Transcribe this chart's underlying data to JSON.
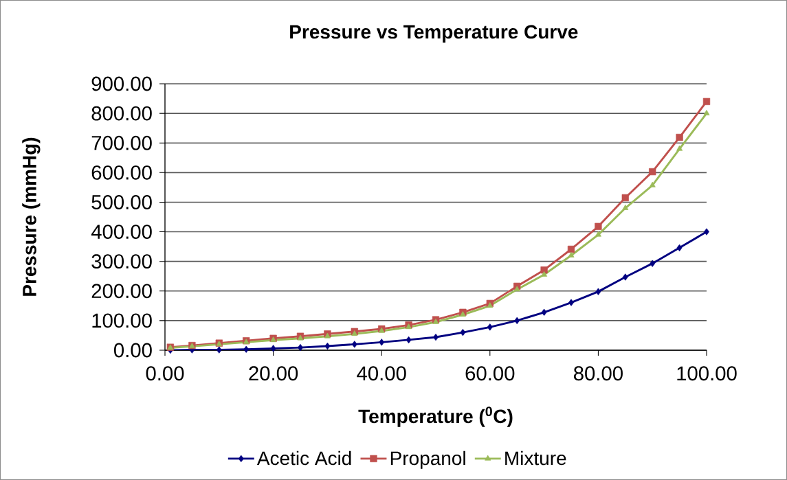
{
  "chart_data": {
    "type": "line",
    "title": "Pressure vs Temperature Curve",
    "xlabel": "Temperature ($^{0}$C)",
    "ylabel": "Pressure (mmHg)",
    "x": [
      1,
      5,
      10,
      15,
      20,
      25,
      30,
      35,
      40,
      45,
      50,
      55,
      60,
      65,
      70,
      75,
      80,
      85,
      90,
      95,
      100
    ],
    "series": [
      {
        "name": "Acetic Acid",
        "color": "#000080",
        "marker": "diamond",
        "values": [
          0,
          1,
          1,
          3,
          6,
          9,
          14,
          20,
          27,
          35,
          44,
          60,
          78,
          100,
          128,
          161,
          198,
          247,
          293,
          346,
          400
        ]
      },
      {
        "name": "Propanol",
        "color": "#c0504d",
        "marker": "square",
        "values": [
          10,
          16,
          24,
          32,
          40,
          47,
          55,
          63,
          72,
          85,
          103,
          128,
          158,
          216,
          271,
          341,
          418,
          515,
          603,
          719,
          840
        ]
      },
      {
        "name": "Mixture",
        "color": "#9bbb59",
        "marker": "triangle",
        "values": [
          8,
          13,
          20,
          27,
          34,
          40,
          47,
          55,
          65,
          78,
          95,
          120,
          150,
          205,
          255,
          320,
          390,
          480,
          557,
          680,
          800
        ]
      }
    ],
    "xlim": [
      0,
      100
    ],
    "ylim": [
      0,
      900
    ],
    "xticks": [
      {
        "value": 0,
        "label": "0.00"
      },
      {
        "value": 20,
        "label": "20.00"
      },
      {
        "value": 40,
        "label": "40.00"
      },
      {
        "value": 60,
        "label": "60.00"
      },
      {
        "value": 80,
        "label": "80.00"
      },
      {
        "value": 100,
        "label": "100.00"
      }
    ],
    "yticks": [
      {
        "value": 0,
        "label": "0.00"
      },
      {
        "value": 100,
        "label": "100.00"
      },
      {
        "value": 200,
        "label": "200.00"
      },
      {
        "value": 300,
        "label": "300.00"
      },
      {
        "value": 400,
        "label": "400.00"
      },
      {
        "value": 500,
        "label": "500.00"
      },
      {
        "value": 600,
        "label": "600.00"
      },
      {
        "value": 700,
        "label": "700.00"
      },
      {
        "value": 800,
        "label": "800.00"
      },
      {
        "value": 900,
        "label": "900.00"
      }
    ],
    "grid": "y",
    "legend": "bottom",
    "line_style": "solid"
  }
}
